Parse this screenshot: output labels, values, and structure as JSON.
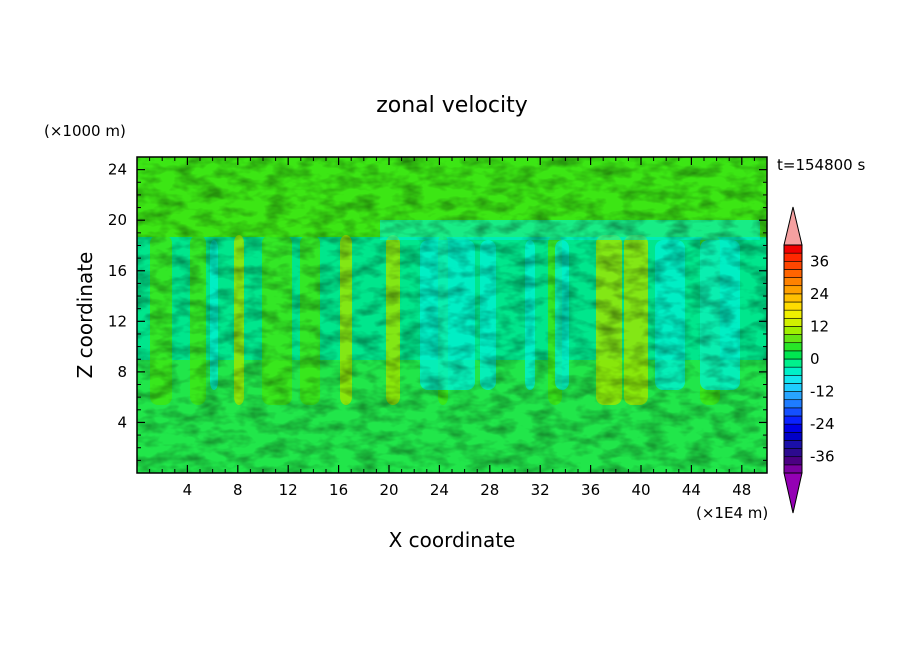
{
  "chart_data": {
    "type": "heatmap",
    "title": "zonal velocity",
    "xlabel": "X coordinate",
    "ylabel": "Z coordinate",
    "x_unit": "(×1E4 m)",
    "y_unit": "(×1000 m)",
    "time_label": "t=154800 s",
    "xlim": [
      0,
      50
    ],
    "ylim": [
      0,
      25
    ],
    "x_ticks": [
      4,
      8,
      12,
      16,
      20,
      24,
      28,
      32,
      36,
      40,
      44,
      48
    ],
    "y_ticks": [
      4,
      8,
      12,
      16,
      20,
      24
    ],
    "colorbar": {
      "levels": [
        -42,
        -39,
        -36,
        -33,
        -30,
        -27,
        -24,
        -21,
        -18,
        -15,
        -12,
        -9,
        -6,
        -3,
        0,
        3,
        6,
        9,
        12,
        15,
        18,
        21,
        24,
        27,
        30,
        33,
        36,
        39,
        42
      ],
      "colors": [
        "#7a00a0",
        "#4b0082",
        "#2c0a8f",
        "#1a0fa8",
        "#0000c8",
        "#0000e6",
        "#0a22ff",
        "#1450ff",
        "#1e7cff",
        "#28a5ff",
        "#1ecdff",
        "#14e6f0",
        "#00f0c8",
        "#00f08c",
        "#00e650",
        "#28e628",
        "#64e614",
        "#a0f000",
        "#d2f000",
        "#f0f000",
        "#ffdc00",
        "#ffc000",
        "#ffa000",
        "#ff8200",
        "#ff6400",
        "#ff4600",
        "#ff2800",
        "#f00000"
      ],
      "tick_labels": [
        "36",
        "24",
        "12",
        "0",
        "-12",
        "-24",
        "-36"
      ],
      "tick_values": [
        36,
        24,
        12,
        0,
        -12,
        -24,
        -36
      ],
      "over_color": "#f5a0a0",
      "under_color": "#9400b4"
    },
    "dominant_field_colors": {
      "near_zero": "#00e68c",
      "slightly_positive": "#3ce614",
      "positive": "#9ae600",
      "slightly_negative": "#00f0d2"
    }
  }
}
